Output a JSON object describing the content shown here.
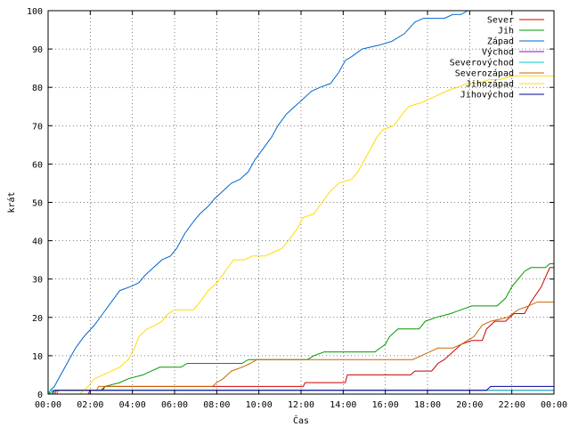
{
  "chart_data": {
    "type": "line",
    "title": "",
    "xlabel": "Čas",
    "ylabel": "krát",
    "xlim": [
      0,
      24
    ],
    "ylim": [
      0,
      100
    ],
    "x_ticks": [
      "00:00",
      "02:00",
      "04:00",
      "06:00",
      "08:00",
      "10:00",
      "12:00",
      "14:00",
      "16:00",
      "18:00",
      "20:00",
      "22:00",
      "00:00"
    ],
    "y_ticks": [
      0,
      10,
      20,
      30,
      40,
      50,
      60,
      70,
      80,
      90,
      100
    ],
    "grid": true,
    "legend_position": "top-right",
    "series": [
      {
        "name": "Sever",
        "color": "#cc0000",
        "points": [
          [
            0,
            0
          ],
          [
            0.3,
            0
          ],
          [
            0.4,
            1
          ],
          [
            2.6,
            1
          ],
          [
            2.7,
            2
          ],
          [
            12.1,
            2
          ],
          [
            12.2,
            3
          ],
          [
            14.1,
            3
          ],
          [
            14.2,
            5
          ],
          [
            17.2,
            5
          ],
          [
            17.4,
            6
          ],
          [
            18.2,
            6
          ],
          [
            18.5,
            8
          ],
          [
            18.8,
            9
          ],
          [
            19.2,
            11
          ],
          [
            19.6,
            13
          ],
          [
            20.1,
            14
          ],
          [
            20.6,
            14
          ],
          [
            20.8,
            17
          ],
          [
            21.2,
            19
          ],
          [
            21.7,
            19
          ],
          [
            22.1,
            21
          ],
          [
            22.6,
            21
          ],
          [
            22.9,
            24
          ],
          [
            23.4,
            28
          ],
          [
            23.8,
            33
          ],
          [
            24,
            33
          ]
        ]
      },
      {
        "name": "Jih",
        "color": "#009900",
        "points": [
          [
            0,
            0
          ],
          [
            0.3,
            1
          ],
          [
            2.5,
            1
          ],
          [
            2.7,
            2
          ],
          [
            3.4,
            3
          ],
          [
            3.8,
            4
          ],
          [
            4.5,
            5
          ],
          [
            4.9,
            6
          ],
          [
            5.3,
            7
          ],
          [
            6.3,
            7
          ],
          [
            6.6,
            8
          ],
          [
            9.2,
            8
          ],
          [
            9.5,
            9
          ],
          [
            12.3,
            9
          ],
          [
            12.6,
            10
          ],
          [
            13.1,
            11
          ],
          [
            15.5,
            11
          ],
          [
            16.0,
            13
          ],
          [
            16.2,
            15
          ],
          [
            16.6,
            17
          ],
          [
            17.6,
            17
          ],
          [
            17.9,
            19
          ],
          [
            18.4,
            20
          ],
          [
            19.1,
            21
          ],
          [
            19.6,
            22
          ],
          [
            20.1,
            23
          ],
          [
            21.3,
            23
          ],
          [
            21.7,
            25
          ],
          [
            22.0,
            28
          ],
          [
            22.3,
            30
          ],
          [
            22.6,
            32
          ],
          [
            22.9,
            33
          ],
          [
            23.6,
            33
          ],
          [
            23.8,
            34
          ],
          [
            24,
            34
          ]
        ]
      },
      {
        "name": "Západ",
        "color": "#0066cc",
        "points": [
          [
            0,
            0
          ],
          [
            0.1,
            1
          ],
          [
            0.3,
            2
          ],
          [
            0.5,
            4
          ],
          [
            0.9,
            8
          ],
          [
            1.3,
            12
          ],
          [
            1.7,
            15
          ],
          [
            2.2,
            18
          ],
          [
            2.6,
            21
          ],
          [
            3.0,
            24
          ],
          [
            3.4,
            27
          ],
          [
            3.9,
            28
          ],
          [
            4.3,
            29
          ],
          [
            4.6,
            31
          ],
          [
            5.0,
            33
          ],
          [
            5.4,
            35
          ],
          [
            5.8,
            36
          ],
          [
            6.1,
            38
          ],
          [
            6.5,
            42
          ],
          [
            6.9,
            45
          ],
          [
            7.2,
            47
          ],
          [
            7.6,
            49
          ],
          [
            7.9,
            51
          ],
          [
            8.3,
            53
          ],
          [
            8.7,
            55
          ],
          [
            9.1,
            56
          ],
          [
            9.5,
            58
          ],
          [
            9.8,
            61
          ],
          [
            10.2,
            64
          ],
          [
            10.6,
            67
          ],
          [
            10.9,
            70
          ],
          [
            11.3,
            73
          ],
          [
            11.7,
            75
          ],
          [
            12.1,
            77
          ],
          [
            12.5,
            79
          ],
          [
            12.9,
            80
          ],
          [
            13.4,
            81
          ],
          [
            13.8,
            84
          ],
          [
            14.1,
            87
          ],
          [
            14.4,
            88
          ],
          [
            14.9,
            90
          ],
          [
            15.7,
            91
          ],
          [
            16.3,
            92
          ],
          [
            16.9,
            94
          ],
          [
            17.4,
            97
          ],
          [
            17.8,
            98
          ],
          [
            18.8,
            98
          ],
          [
            19.2,
            99
          ],
          [
            19.6,
            99
          ],
          [
            19.9,
            100
          ],
          [
            20.3,
            101
          ]
        ]
      },
      {
        "name": "Východ",
        "color": "#9900cc",
        "points": [
          [
            0,
            0
          ],
          [
            1.9,
            0
          ],
          [
            2.0,
            1
          ],
          [
            24,
            1
          ]
        ]
      },
      {
        "name": "Severovýchod",
        "color": "#00cccc",
        "points": [
          [
            0,
            0
          ],
          [
            0.1,
            1
          ],
          [
            24,
            1
          ]
        ]
      },
      {
        "name": "Severozápad",
        "color": "#cc6600",
        "points": [
          [
            0,
            0
          ],
          [
            0.4,
            0
          ],
          [
            0.5,
            1
          ],
          [
            2.3,
            1
          ],
          [
            2.4,
            2
          ],
          [
            7.8,
            2
          ],
          [
            8.0,
            3
          ],
          [
            8.3,
            4
          ],
          [
            8.7,
            6
          ],
          [
            9.2,
            7
          ],
          [
            9.6,
            8
          ],
          [
            9.9,
            9
          ],
          [
            12.2,
            9
          ],
          [
            17.3,
            9
          ],
          [
            17.7,
            10
          ],
          [
            18.1,
            11
          ],
          [
            18.5,
            12
          ],
          [
            19.2,
            12
          ],
          [
            19.6,
            13
          ],
          [
            20.2,
            15
          ],
          [
            20.6,
            18
          ],
          [
            21.0,
            19
          ],
          [
            21.8,
            20
          ],
          [
            22.3,
            22
          ],
          [
            22.8,
            23
          ],
          [
            23.2,
            24
          ],
          [
            24,
            24
          ]
        ]
      },
      {
        "name": "Jihozápad",
        "color": "#ffdd00",
        "points": [
          [
            0,
            0
          ],
          [
            1.5,
            0
          ],
          [
            1.7,
            1
          ],
          [
            1.9,
            2
          ],
          [
            2.2,
            4
          ],
          [
            2.6,
            5
          ],
          [
            3.0,
            6
          ],
          [
            3.4,
            7
          ],
          [
            3.8,
            9
          ],
          [
            4.1,
            12
          ],
          [
            4.3,
            15
          ],
          [
            4.7,
            17
          ],
          [
            5.1,
            18
          ],
          [
            5.4,
            19
          ],
          [
            5.7,
            21
          ],
          [
            6.0,
            22
          ],
          [
            6.9,
            22
          ],
          [
            7.2,
            24
          ],
          [
            7.6,
            27
          ],
          [
            8.0,
            29
          ],
          [
            8.4,
            32
          ],
          [
            8.8,
            35
          ],
          [
            9.3,
            35
          ],
          [
            9.7,
            36
          ],
          [
            10.3,
            36
          ],
          [
            10.7,
            37
          ],
          [
            11.1,
            38
          ],
          [
            11.4,
            40
          ],
          [
            11.8,
            43
          ],
          [
            12.1,
            46
          ],
          [
            12.6,
            47
          ],
          [
            13.0,
            50
          ],
          [
            13.4,
            53
          ],
          [
            13.8,
            55
          ],
          [
            14.4,
            56
          ],
          [
            14.7,
            58
          ],
          [
            15.0,
            61
          ],
          [
            15.3,
            64
          ],
          [
            15.6,
            67
          ],
          [
            15.9,
            69
          ],
          [
            16.4,
            70
          ],
          [
            16.8,
            73
          ],
          [
            17.1,
            75
          ],
          [
            17.7,
            76
          ],
          [
            18.1,
            77
          ],
          [
            18.5,
            78
          ],
          [
            18.9,
            79
          ],
          [
            19.4,
            80
          ],
          [
            19.9,
            81
          ],
          [
            20.4,
            81
          ],
          [
            20.9,
            82
          ],
          [
            21.4,
            82
          ],
          [
            22.0,
            83
          ],
          [
            24,
            83
          ]
        ]
      },
      {
        "name": "Jihovýchod",
        "color": "#000099",
        "points": [
          [
            0,
            0
          ],
          [
            0.2,
            0
          ],
          [
            0.3,
            1
          ],
          [
            20.8,
            1
          ],
          [
            21.0,
            2
          ],
          [
            24,
            2
          ]
        ]
      }
    ]
  }
}
